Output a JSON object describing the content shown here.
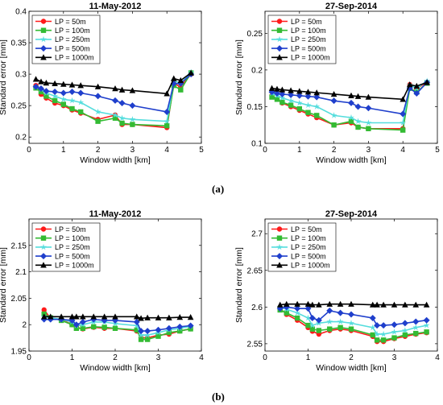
{
  "captions": [
    "(a)",
    "(b)"
  ],
  "legend_labels": [
    "LP = 50m",
    "LP = 100m",
    "LP = 250m",
    "LP = 500m",
    "LP = 1000m"
  ],
  "series_colors": [
    "#ff1a1a",
    "#33bb33",
    "#55dddd",
    "#1f3fcc",
    "#000000"
  ],
  "series_markers": [
    "circle",
    "square",
    "star",
    "diamond",
    "triangle"
  ],
  "chart_data": [
    {
      "type": "line",
      "title": "11-May-2012",
      "xlabel": "Window width [km]",
      "ylabel": "Standard error [mm]",
      "xlim": [
        0,
        5
      ],
      "ylim": [
        0.19,
        0.4
      ],
      "xticks": [
        0,
        1,
        2,
        3,
        4,
        5
      ],
      "xtick_labels": [
        "0",
        "1",
        "2",
        "3",
        "4",
        "5"
      ],
      "yticks": [
        0.2,
        0.25,
        0.3,
        0.35,
        0.4
      ],
      "ytick_labels": [
        "0.2",
        "0.25",
        "0.3",
        "0.35",
        "0.4"
      ],
      "grid": false,
      "legend": "top-left",
      "series": [
        {
          "name": "LP = 50m",
          "x": [
            0.2,
            0.35,
            0.5,
            0.75,
            1.0,
            1.25,
            1.5,
            2.0,
            2.5,
            2.7,
            3.0,
            4.0,
            4.2,
            4.4,
            4.7
          ],
          "values": [
            0.282,
            0.268,
            0.262,
            0.254,
            0.25,
            0.243,
            0.238,
            0.228,
            0.235,
            0.22,
            0.22,
            0.215,
            0.285,
            0.28,
            0.3
          ]
        },
        {
          "name": "LP = 100m",
          "x": [
            0.2,
            0.35,
            0.5,
            0.75,
            1.0,
            1.25,
            1.5,
            2.0,
            2.5,
            2.7,
            3.0,
            4.0,
            4.2,
            4.4,
            4.7
          ],
          "values": [
            0.278,
            0.272,
            0.265,
            0.258,
            0.252,
            0.245,
            0.24,
            0.225,
            0.23,
            0.222,
            0.22,
            0.218,
            0.282,
            0.275,
            0.302
          ]
        },
        {
          "name": "LP = 250m",
          "x": [
            0.2,
            0.35,
            0.5,
            0.75,
            1.0,
            1.25,
            1.5,
            2.0,
            2.5,
            2.7,
            3.0,
            4.0,
            4.2,
            4.4,
            4.7
          ],
          "values": [
            0.28,
            0.276,
            0.27,
            0.265,
            0.26,
            0.258,
            0.255,
            0.24,
            0.235,
            0.23,
            0.228,
            0.225,
            0.29,
            0.285,
            0.303
          ]
        },
        {
          "name": "LP = 500m",
          "x": [
            0.2,
            0.35,
            0.5,
            0.75,
            1.0,
            1.25,
            1.5,
            2.0,
            2.5,
            2.7,
            3.0,
            4.0,
            4.2,
            4.4,
            4.7
          ],
          "values": [
            0.28,
            0.277,
            0.273,
            0.272,
            0.27,
            0.272,
            0.27,
            0.265,
            0.258,
            0.254,
            0.25,
            0.24,
            0.285,
            0.285,
            0.3
          ]
        },
        {
          "name": "LP = 1000m",
          "x": [
            0.2,
            0.35,
            0.5,
            0.75,
            1.0,
            1.25,
            1.5,
            2.0,
            2.5,
            2.7,
            3.0,
            4.0,
            4.2,
            4.4,
            4.7
          ],
          "values": [
            0.292,
            0.288,
            0.286,
            0.285,
            0.284,
            0.283,
            0.282,
            0.28,
            0.277,
            0.275,
            0.274,
            0.269,
            0.293,
            0.29,
            0.302
          ]
        }
      ]
    },
    {
      "type": "line",
      "title": "27-Sep-2014",
      "xlabel": "Window width [km]",
      "ylabel": "Standard error [mm]",
      "xlim": [
        0,
        5
      ],
      "ylim": [
        0.1,
        0.28
      ],
      "xticks": [
        0,
        1,
        2,
        3,
        4,
        5
      ],
      "xtick_labels": [
        "0",
        "1",
        "2",
        "3",
        "4",
        "5"
      ],
      "yticks": [
        0.1,
        0.15,
        0.2,
        0.25
      ],
      "ytick_labels": [
        "0.1",
        "0.15",
        "0.2",
        "0.25"
      ],
      "grid": false,
      "legend": "top-left",
      "series": [
        {
          "name": "LP = 50m",
          "x": [
            0.2,
            0.35,
            0.5,
            0.75,
            1.0,
            1.25,
            1.5,
            2.0,
            2.5,
            2.7,
            3.0,
            4.0,
            4.2,
            4.4,
            4.7
          ],
          "values": [
            0.165,
            0.16,
            0.155,
            0.15,
            0.145,
            0.14,
            0.135,
            0.125,
            0.128,
            0.122,
            0.12,
            0.12,
            0.18,
            0.175,
            0.183
          ]
        },
        {
          "name": "LP = 100m",
          "x": [
            0.2,
            0.35,
            0.5,
            0.75,
            1.0,
            1.25,
            1.5,
            2.0,
            2.5,
            2.7,
            3.0,
            4.0,
            4.2,
            4.4,
            4.7
          ],
          "values": [
            0.163,
            0.16,
            0.156,
            0.152,
            0.147,
            0.142,
            0.138,
            0.125,
            0.13,
            0.122,
            0.12,
            0.118,
            0.175,
            0.17,
            0.182
          ]
        },
        {
          "name": "LP = 250m",
          "x": [
            0.2,
            0.35,
            0.5,
            0.75,
            1.0,
            1.25,
            1.5,
            2.0,
            2.5,
            2.7,
            3.0,
            4.0,
            4.2,
            4.4,
            4.7
          ],
          "values": [
            0.168,
            0.165,
            0.162,
            0.158,
            0.155,
            0.152,
            0.15,
            0.138,
            0.135,
            0.13,
            0.128,
            0.128,
            0.18,
            0.175,
            0.185
          ]
        },
        {
          "name": "LP = 500m",
          "x": [
            0.2,
            0.35,
            0.5,
            0.75,
            1.0,
            1.25,
            1.5,
            2.0,
            2.5,
            2.7,
            3.0,
            4.0,
            4.2,
            4.4,
            4.7
          ],
          "values": [
            0.17,
            0.168,
            0.167,
            0.166,
            0.165,
            0.164,
            0.163,
            0.158,
            0.155,
            0.15,
            0.148,
            0.14,
            0.175,
            0.168,
            0.183
          ]
        },
        {
          "name": "LP = 1000m",
          "x": [
            0.2,
            0.35,
            0.5,
            0.75,
            1.0,
            1.25,
            1.5,
            2.0,
            2.5,
            2.7,
            3.0,
            4.0,
            4.2,
            4.4,
            4.7
          ],
          "values": [
            0.175,
            0.174,
            0.173,
            0.172,
            0.171,
            0.17,
            0.169,
            0.167,
            0.165,
            0.164,
            0.163,
            0.16,
            0.18,
            0.178,
            0.183
          ]
        }
      ]
    },
    {
      "type": "line",
      "title": "11-May-2012",
      "xlabel": "Window width [km]",
      "ylabel": "Standard error [mm]",
      "xlim": [
        0,
        4
      ],
      "ylim": [
        1.95,
        2.2
      ],
      "xticks": [
        0,
        1,
        2,
        3,
        4
      ],
      "xtick_labels": [
        "0",
        "1",
        "2",
        "3",
        "4"
      ],
      "yticks": [
        1.95,
        2.0,
        2.05,
        2.1,
        2.15
      ],
      "ytick_labels": [
        "1.95",
        "2",
        "2.05",
        "2.1",
        "2.15"
      ],
      "grid": false,
      "legend": "top-left",
      "series": [
        {
          "name": "LP = 50m",
          "x": [
            0.35,
            0.5,
            0.75,
            1.0,
            1.1,
            1.25,
            1.5,
            1.75,
            2.0,
            2.5,
            2.6,
            2.75,
            3.0,
            3.25,
            3.5,
            3.75
          ],
          "values": [
            2.028,
            2.012,
            2.01,
            2.0,
            1.995,
            1.992,
            1.995,
            1.993,
            1.993,
            1.988,
            1.975,
            1.975,
            1.98,
            1.982,
            1.988,
            1.992
          ]
        },
        {
          "name": "LP = 100m",
          "x": [
            0.35,
            0.5,
            0.75,
            1.0,
            1.1,
            1.25,
            1.5,
            1.75,
            2.0,
            2.5,
            2.6,
            2.75,
            3.0,
            3.25,
            3.5,
            3.75
          ],
          "values": [
            2.02,
            2.013,
            2.008,
            2.0,
            1.993,
            1.993,
            1.996,
            1.995,
            1.993,
            1.99,
            1.972,
            1.972,
            1.978,
            1.985,
            1.988,
            1.992
          ]
        },
        {
          "name": "LP = 250m",
          "x": [
            0.35,
            0.5,
            0.75,
            1.0,
            1.1,
            1.25,
            1.5,
            1.75,
            2.0,
            2.5,
            2.6,
            2.75,
            3.0,
            3.25,
            3.5,
            3.75
          ],
          "values": [
            2.015,
            2.013,
            2.01,
            2.005,
            1.998,
            2.0,
            2.005,
            2.005,
            2.002,
            1.998,
            1.98,
            1.98,
            1.985,
            1.99,
            1.993,
            1.997
          ]
        },
        {
          "name": "LP = 500m",
          "x": [
            0.35,
            0.5,
            0.75,
            1.0,
            1.1,
            1.25,
            1.5,
            1.75,
            2.0,
            2.5,
            2.6,
            2.75,
            3.0,
            3.25,
            3.5,
            3.75
          ],
          "values": [
            2.01,
            2.01,
            2.01,
            2.008,
            2.0,
            2.005,
            2.01,
            2.008,
            2.008,
            2.005,
            1.988,
            1.988,
            1.99,
            1.993,
            1.996,
            1.998
          ]
        },
        {
          "name": "LP = 1000m",
          "x": [
            0.35,
            0.5,
            0.75,
            1.0,
            1.1,
            1.25,
            1.5,
            1.75,
            2.0,
            2.5,
            2.6,
            2.75,
            3.0,
            3.25,
            3.5,
            3.75
          ],
          "values": [
            2.015,
            2.015,
            2.015,
            2.015,
            2.015,
            2.015,
            2.015,
            2.015,
            2.015,
            2.015,
            2.012,
            2.013,
            2.013,
            2.013,
            2.014,
            2.014
          ]
        }
      ]
    },
    {
      "type": "line",
      "title": "27-Sep-2014",
      "xlabel": "Window width [km]",
      "ylabel": "Standard error [mm]",
      "xlim": [
        0,
        4
      ],
      "ylim": [
        2.54,
        2.72
      ],
      "xticks": [
        0,
        1,
        2,
        3,
        4
      ],
      "xtick_labels": [
        "0",
        "1",
        "2",
        "3",
        "4"
      ],
      "yticks": [
        2.55,
        2.6,
        2.65,
        2.7
      ],
      "ytick_labels": [
        "2.55",
        "2.6",
        "2.65",
        "2.7"
      ],
      "grid": false,
      "legend": "top-left",
      "series": [
        {
          "name": "LP = 50m",
          "x": [
            0.35,
            0.5,
            0.75,
            1.0,
            1.1,
            1.25,
            1.5,
            1.75,
            2.0,
            2.5,
            2.6,
            2.75,
            3.0,
            3.25,
            3.5,
            3.75
          ],
          "values": [
            2.598,
            2.59,
            2.582,
            2.572,
            2.567,
            2.563,
            2.568,
            2.57,
            2.568,
            2.56,
            2.553,
            2.553,
            2.557,
            2.56,
            2.563,
            2.565
          ]
        },
        {
          "name": "LP = 100m",
          "x": [
            0.35,
            0.5,
            0.75,
            1.0,
            1.1,
            1.25,
            1.5,
            1.75,
            2.0,
            2.5,
            2.6,
            2.75,
            3.0,
            3.25,
            3.5,
            3.75
          ],
          "values": [
            2.596,
            2.592,
            2.585,
            2.575,
            2.57,
            2.568,
            2.57,
            2.572,
            2.57,
            2.562,
            2.555,
            2.555,
            2.558,
            2.562,
            2.564,
            2.566
          ]
        },
        {
          "name": "LP = 250m",
          "x": [
            0.35,
            0.5,
            0.75,
            1.0,
            1.1,
            1.25,
            1.5,
            1.75,
            2.0,
            2.5,
            2.6,
            2.75,
            3.0,
            3.25,
            3.5,
            3.75
          ],
          "values": [
            2.6,
            2.597,
            2.592,
            2.585,
            2.575,
            2.578,
            2.58,
            2.58,
            2.578,
            2.572,
            2.563,
            2.563,
            2.566,
            2.568,
            2.572,
            2.575
          ]
        },
        {
          "name": "LP = 500m",
          "x": [
            0.35,
            0.5,
            0.75,
            1.0,
            1.1,
            1.25,
            1.5,
            1.75,
            2.0,
            2.5,
            2.6,
            2.75,
            3.0,
            3.25,
            3.5,
            3.75
          ],
          "values": [
            2.598,
            2.6,
            2.598,
            2.598,
            2.585,
            2.582,
            2.595,
            2.592,
            2.59,
            2.585,
            2.575,
            2.575,
            2.576,
            2.578,
            2.58,
            2.582
          ]
        },
        {
          "name": "LP = 1000m",
          "x": [
            0.35,
            0.5,
            0.75,
            1.0,
            1.1,
            1.25,
            1.5,
            1.75,
            2.0,
            2.5,
            2.6,
            2.75,
            3.0,
            3.25,
            3.5,
            3.75
          ],
          "values": [
            2.603,
            2.604,
            2.604,
            2.604,
            2.603,
            2.603,
            2.604,
            2.604,
            2.604,
            2.603,
            2.603,
            2.603,
            2.603,
            2.603,
            2.603,
            2.603
          ]
        }
      ]
    }
  ]
}
